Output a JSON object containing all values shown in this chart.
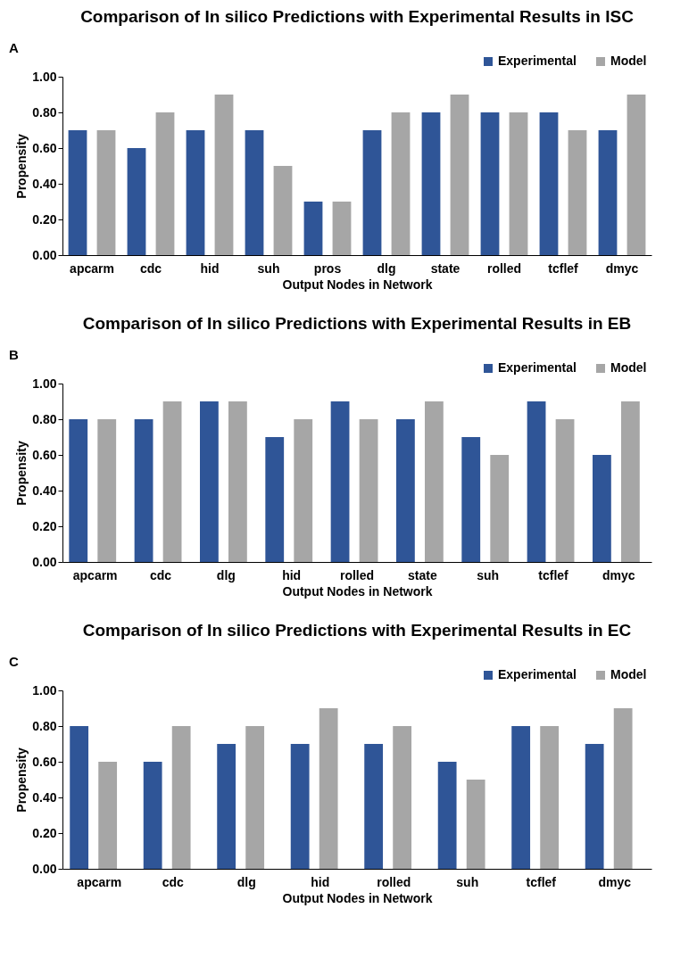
{
  "chart_data": [
    {
      "type": "bar",
      "title": "Comparison of In silico Predictions with Experimental Results in ISC",
      "annotations": [
        "A"
      ],
      "xlabel": "Output Nodes in Network",
      "ylabel": "Propensity",
      "categories": [
        "apcarm",
        "cdc",
        "hid",
        "suh",
        "pros",
        "dlg",
        "state",
        "rolled",
        "tcflef",
        "dmyc"
      ],
      "series": [
        {
          "name": "Experimental",
          "color": "#2f5597",
          "values": [
            0.7,
            0.6,
            0.7,
            0.7,
            0.3,
            0.7,
            0.8,
            0.8,
            0.8,
            0.7
          ]
        },
        {
          "name": "Model",
          "color": "#a6a6a6",
          "values": [
            0.7,
            0.8,
            0.9,
            0.5,
            0.3,
            0.8,
            0.9,
            0.8,
            0.7,
            0.9
          ]
        }
      ],
      "ylim": [
        0,
        1
      ],
      "yticks": [
        {
          "value": 0,
          "label": "0.00"
        },
        {
          "value": 0.2,
          "label": "0.20"
        },
        {
          "value": 0.4,
          "label": "0.40"
        },
        {
          "value": 0.6,
          "label": "0.60"
        },
        {
          "value": 0.8,
          "label": "0.80"
        },
        {
          "value": 1,
          "label": "1.00"
        }
      ],
      "grid": false,
      "legend": "top right"
    },
    {
      "type": "bar",
      "title": "Comparison of In silico Predictions with Experimental Results in EB",
      "annotations": [
        "B"
      ],
      "xlabel": "Output Nodes in Network",
      "ylabel": "Propensity",
      "categories": [
        "apcarm",
        "cdc",
        "dlg",
        "hid",
        "rolled",
        "state",
        "suh",
        "tcflef",
        "dmyc"
      ],
      "series": [
        {
          "name": "Experimental",
          "color": "#2f5597",
          "values": [
            0.8,
            0.8,
            0.9,
            0.7,
            0.9,
            0.8,
            0.7,
            0.9,
            0.6
          ]
        },
        {
          "name": "Model",
          "color": "#a6a6a6",
          "values": [
            0.8,
            0.9,
            0.9,
            0.8,
            0.8,
            0.9,
            0.6,
            0.8,
            0.9
          ]
        }
      ],
      "ylim": [
        0,
        1
      ],
      "yticks": [
        {
          "value": 0,
          "label": "0.00"
        },
        {
          "value": 0.2,
          "label": "0.20"
        },
        {
          "value": 0.4,
          "label": "0.40"
        },
        {
          "value": 0.6,
          "label": "0.60"
        },
        {
          "value": 0.8,
          "label": "0.80"
        },
        {
          "value": 1,
          "label": "1.00"
        }
      ],
      "grid": false,
      "legend": "top right"
    },
    {
      "type": "bar",
      "title": "Comparison of In silico Predictions with Experimental Results in EC",
      "annotations": [
        "C"
      ],
      "xlabel": "Output Nodes in Network",
      "ylabel": "Propensity",
      "categories": [
        "apcarm",
        "cdc",
        "dlg",
        "hid",
        "rolled",
        "suh",
        "tcflef",
        "dmyc"
      ],
      "series": [
        {
          "name": "Experimental",
          "color": "#2f5597",
          "values": [
            0.8,
            0.6,
            0.7,
            0.7,
            0.7,
            0.6,
            0.8,
            0.7
          ]
        },
        {
          "name": "Model",
          "color": "#a6a6a6",
          "values": [
            0.6,
            0.8,
            0.8,
            0.9,
            0.8,
            0.5,
            0.8,
            0.9
          ]
        }
      ],
      "ylim": [
        0,
        1
      ],
      "yticks": [
        {
          "value": 0,
          "label": "0.00"
        },
        {
          "value": 0.2,
          "label": "0.20"
        },
        {
          "value": 0.4,
          "label": "0.40"
        },
        {
          "value": 0.6,
          "label": "0.60"
        },
        {
          "value": 0.8,
          "label": "0.80"
        },
        {
          "value": 1,
          "label": "1.00"
        }
      ],
      "grid": false,
      "legend": "top right"
    }
  ]
}
